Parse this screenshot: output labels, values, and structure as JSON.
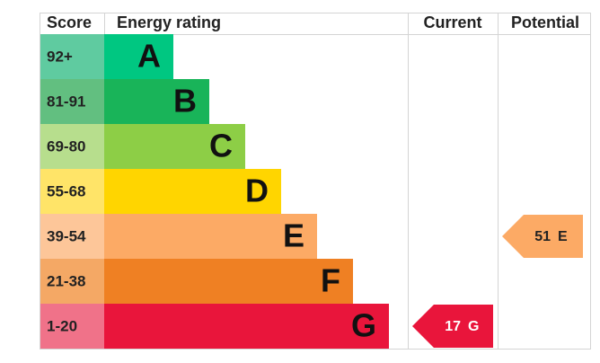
{
  "header": {
    "score": "Score",
    "rating": "Energy rating",
    "current": "Current",
    "potential": "Potential"
  },
  "bands": [
    {
      "score": "92+",
      "letter": "A",
      "color": "#00c781",
      "score_color": "#5fcba0"
    },
    {
      "score": "81-91",
      "letter": "B",
      "color": "#19b459",
      "score_color": "#62bf80"
    },
    {
      "score": "69-80",
      "letter": "C",
      "color": "#8dce46",
      "score_color": "#b7de8d"
    },
    {
      "score": "55-68",
      "letter": "D",
      "color": "#ffd500",
      "score_color": "#ffe468"
    },
    {
      "score": "39-54",
      "letter": "E",
      "color": "#fcaa65",
      "score_color": "#fdc699"
    },
    {
      "score": "21-38",
      "letter": "F",
      "color": "#ef8023",
      "score_color": "#f4a865"
    },
    {
      "score": "1-20",
      "letter": "G",
      "color": "#e9153b",
      "score_color": "#f07289"
    }
  ],
  "current": {
    "value": 17,
    "letter": "G",
    "text_color": "#ffffff"
  },
  "potential": {
    "value": 51,
    "letter": "E",
    "text_color": "#222222"
  }
}
